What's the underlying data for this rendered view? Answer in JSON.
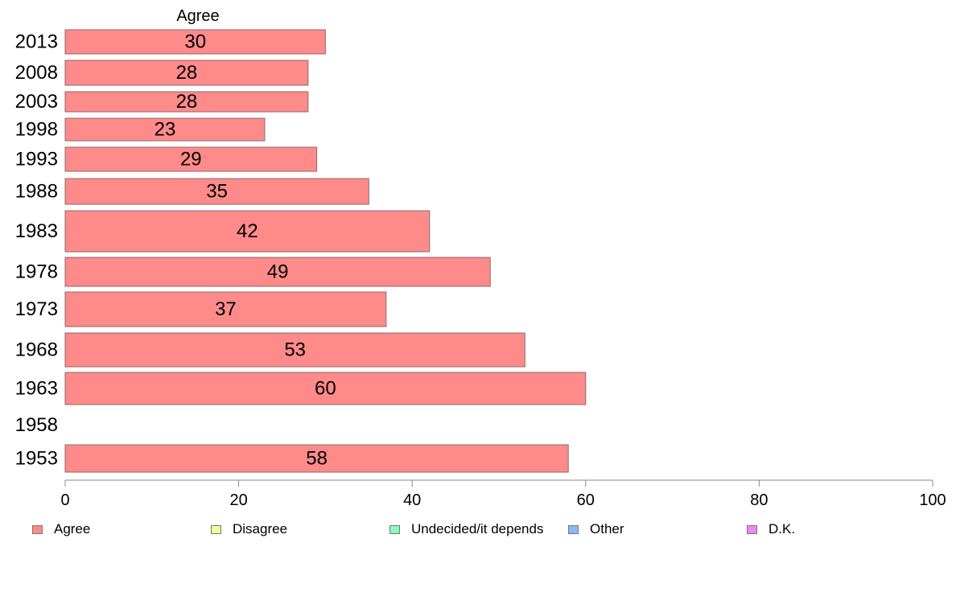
{
  "chart_data": {
    "type": "bar",
    "orientation": "horizontal",
    "series_title": "Agree",
    "categories": [
      "2013",
      "2008",
      "2003",
      "1998",
      "1993",
      "1988",
      "1983",
      "1978",
      "1973",
      "1968",
      "1963",
      "1958",
      "1953"
    ],
    "series": [
      {
        "name": "Agree",
        "values": [
          30,
          28,
          28,
          23,
          29,
          35,
          42,
          49,
          37,
          53,
          60,
          null,
          58
        ],
        "color": "#ff8a8a"
      }
    ],
    "data_labels": [
      "30",
      "28",
      "28",
      "23",
      "29",
      "35",
      "42",
      "49",
      "37",
      "53",
      "60",
      "",
      "58"
    ],
    "x_ticks": [
      0,
      20,
      40,
      60,
      80,
      100
    ],
    "xlim": [
      0,
      100
    ],
    "grid": false,
    "legend": {
      "position": "bottom",
      "items": [
        {
          "label": "Agree",
          "color": "#ff8a8a"
        },
        {
          "label": "Disagree",
          "color": "#eeff99"
        },
        {
          "label": "Undecided/it depends",
          "color": "#88ffbb"
        },
        {
          "label": "Other",
          "color": "#88b8ff"
        },
        {
          "label": "D.K.",
          "color": "#ee88ee"
        }
      ]
    }
  }
}
